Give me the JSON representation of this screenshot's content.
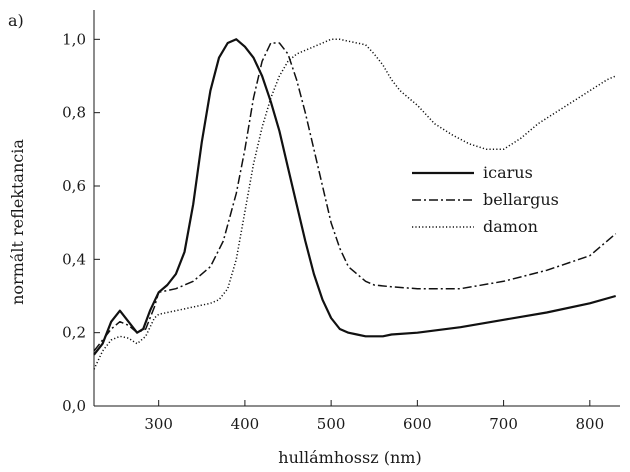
{
  "chart_data": {
    "type": "line",
    "panel_label": "a)",
    "xlabel": "hullámhossz (nm)",
    "ylabel": "normált reflektancia",
    "xlim": [
      225,
      835
    ],
    "ylim": [
      0,
      1.08
    ],
    "xticks": [
      300,
      400,
      500,
      600,
      700,
      800
    ],
    "xtick_labels": [
      "300",
      "400",
      "500",
      "600",
      "700",
      "800"
    ],
    "yticks": [
      0,
      0.2,
      0.4,
      0.6,
      0.8,
      1.0
    ],
    "ytick_labels": [
      "0,0",
      "0,2",
      "0,4",
      "0,6",
      "0,8",
      "1,0"
    ],
    "grid": false,
    "legend_position": "right-middle",
    "series": [
      {
        "name": "icarus",
        "style": "solid",
        "x": [
          225,
          235,
          245,
          255,
          265,
          275,
          282,
          290,
          300,
          310,
          320,
          330,
          340,
          350,
          360,
          370,
          380,
          390,
          400,
          410,
          420,
          430,
          440,
          450,
          460,
          470,
          480,
          490,
          500,
          510,
          520,
          530,
          540,
          550,
          560,
          570,
          600,
          650,
          700,
          750,
          800,
          830
        ],
        "values": [
          0.14,
          0.17,
          0.23,
          0.26,
          0.23,
          0.2,
          0.21,
          0.26,
          0.31,
          0.33,
          0.36,
          0.42,
          0.55,
          0.72,
          0.86,
          0.95,
          0.99,
          1.0,
          0.98,
          0.95,
          0.9,
          0.83,
          0.75,
          0.65,
          0.55,
          0.45,
          0.36,
          0.29,
          0.24,
          0.21,
          0.2,
          0.195,
          0.19,
          0.19,
          0.19,
          0.195,
          0.2,
          0.215,
          0.235,
          0.255,
          0.28,
          0.3
        ]
      },
      {
        "name": "bellargus",
        "style": "dashdot",
        "x": [
          225,
          235,
          245,
          255,
          265,
          275,
          285,
          295,
          300,
          320,
          340,
          360,
          375,
          390,
          400,
          410,
          420,
          430,
          440,
          450,
          460,
          470,
          480,
          490,
          500,
          510,
          520,
          530,
          540,
          550,
          570,
          600,
          650,
          700,
          750,
          800,
          830
        ],
        "values": [
          0.15,
          0.18,
          0.21,
          0.23,
          0.22,
          0.2,
          0.21,
          0.27,
          0.31,
          0.32,
          0.34,
          0.38,
          0.45,
          0.58,
          0.7,
          0.84,
          0.94,
          0.99,
          0.99,
          0.96,
          0.89,
          0.8,
          0.7,
          0.6,
          0.5,
          0.43,
          0.38,
          0.36,
          0.34,
          0.33,
          0.325,
          0.32,
          0.32,
          0.34,
          0.37,
          0.41,
          0.47
        ]
      },
      {
        "name": "damon",
        "style": "dotted",
        "x": [
          225,
          235,
          245,
          255,
          265,
          275,
          285,
          295,
          300,
          320,
          340,
          360,
          370,
          380,
          390,
          400,
          410,
          420,
          430,
          440,
          450,
          460,
          470,
          480,
          490,
          500,
          510,
          520,
          530,
          540,
          550,
          560,
          570,
          580,
          590,
          600,
          620,
          640,
          660,
          680,
          700,
          720,
          740,
          760,
          780,
          800,
          820,
          830
        ],
        "values": [
          0.1,
          0.15,
          0.18,
          0.19,
          0.185,
          0.17,
          0.19,
          0.24,
          0.25,
          0.26,
          0.27,
          0.28,
          0.29,
          0.32,
          0.4,
          0.53,
          0.66,
          0.76,
          0.84,
          0.9,
          0.94,
          0.96,
          0.97,
          0.98,
          0.99,
          1.0,
          1.0,
          0.995,
          0.99,
          0.985,
          0.96,
          0.93,
          0.89,
          0.86,
          0.84,
          0.82,
          0.77,
          0.74,
          0.715,
          0.7,
          0.7,
          0.73,
          0.77,
          0.8,
          0.83,
          0.86,
          0.89,
          0.9
        ]
      }
    ]
  }
}
